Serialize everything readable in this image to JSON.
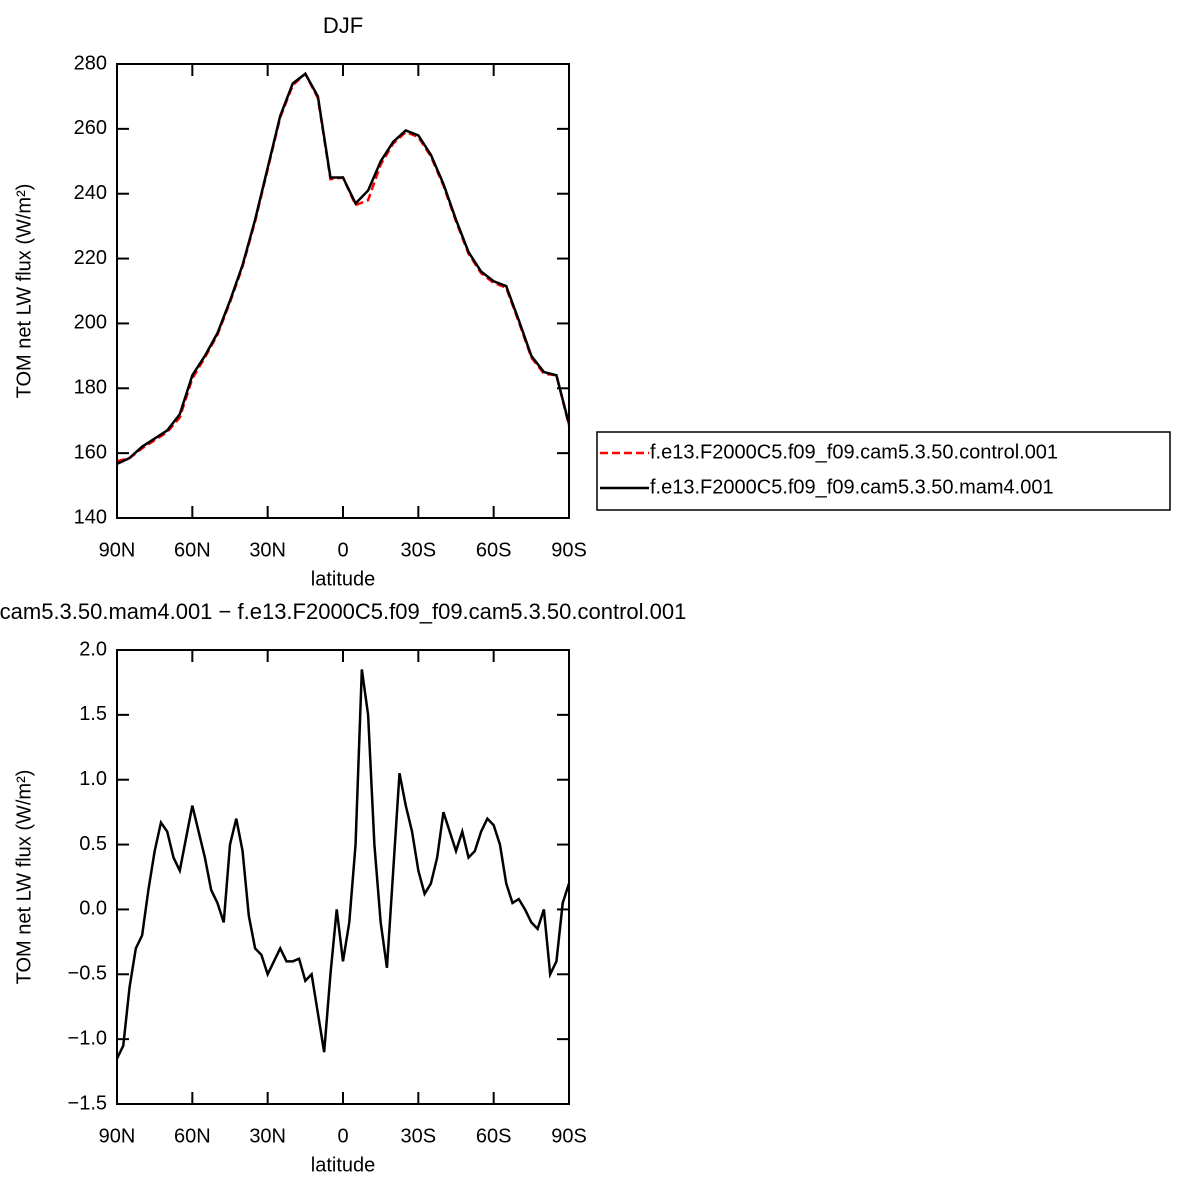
{
  "chart_data": [
    {
      "type": "line",
      "title": "DJF",
      "xlabel": "latitude",
      "ylabel": "TOM net LW flux (W/m²)",
      "x": [
        90,
        85,
        80,
        75,
        70,
        65,
        60,
        55,
        50,
        45,
        40,
        35,
        30,
        25,
        20,
        15,
        10,
        5,
        0,
        -5,
        -10,
        -15,
        -20,
        -25,
        -30,
        -35,
        -40,
        -45,
        -50,
        -55,
        -60,
        -65,
        -70,
        -75,
        -80,
        -85,
        -90
      ],
      "series": [
        {
          "name": "f.e13.F2000C5.f09_f09.cam5.3.50.control.001",
          "color": "#ff0000",
          "line_style": "dashed",
          "values": [
            157.5,
            158.5,
            161.5,
            164,
            166.5,
            171,
            183,
            189.5,
            196.5,
            206.5,
            217.5,
            231.5,
            247.5,
            263.5,
            273.5,
            277,
            269.5,
            244.5,
            245,
            236.5,
            238,
            249,
            255.5,
            259,
            257.5,
            251.5,
            242.5,
            231.5,
            221.5,
            215.5,
            212.5,
            211,
            200.5,
            189.5,
            184.5,
            184,
            168.5
          ]
        },
        {
          "name": "f.e13.F2000C5.f09_f09.cam5.3.50.mam4.001",
          "color": "#000000",
          "line_style": "solid",
          "values": [
            156.7,
            158.5,
            162,
            164.5,
            167,
            172,
            184,
            190,
            197,
            207,
            218,
            232,
            248,
            264,
            274,
            277,
            270,
            245,
            245,
            237,
            241,
            250,
            256,
            259.5,
            258,
            252,
            243,
            232,
            222,
            216,
            213,
            211.5,
            201,
            190,
            185,
            184,
            169
          ]
        }
      ],
      "xlim": [
        90,
        -90
      ],
      "xticks": [
        {
          "value": 90,
          "label": "90N"
        },
        {
          "value": 60,
          "label": "60N"
        },
        {
          "value": 30,
          "label": "30N"
        },
        0,
        {
          "value": -30,
          "label": "30S"
        },
        {
          "value": -60,
          "label": "60S"
        },
        {
          "value": -90,
          "label": "90S"
        }
      ],
      "ylim": [
        140,
        280
      ],
      "yticks": [
        140,
        160,
        180,
        200,
        220,
        240,
        260,
        280
      ],
      "legend": "right"
    },
    {
      "type": "line",
      "title": "cam5.3.50.mam4.001 − f.e13.F2000C5.f09_f09.cam5.3.50.control.001",
      "xlabel": "latitude",
      "ylabel": "TOM net LW flux (W/m²)",
      "x": [
        90,
        87.5,
        85,
        82.5,
        80,
        77.5,
        75,
        72.5,
        70,
        67.5,
        65,
        62.5,
        60,
        57.5,
        55,
        52.5,
        50,
        47.5,
        45,
        42.5,
        40,
        37.5,
        35,
        32.5,
        30,
        27.5,
        25,
        22.5,
        20,
        17.5,
        15,
        12.5,
        10,
        7.5,
        5,
        2.5,
        0,
        -2.5,
        -5,
        -7.5,
        -10,
        -12.5,
        -15,
        -17.5,
        -20,
        -22.5,
        -25,
        -27.5,
        -30,
        -32.5,
        -35,
        -37.5,
        -40,
        -42.5,
        -45,
        -47.5,
        -50,
        -52.5,
        -55,
        -57.5,
        -60,
        -62.5,
        -65,
        -67.5,
        -70,
        -72.5,
        -75,
        -77.5,
        -80,
        -82.5,
        -85,
        -87.5,
        -90
      ],
      "series": [
        {
          "color": "#000000",
          "line_style": "solid",
          "values": [
            -1.15,
            -1.05,
            -0.6,
            -0.3,
            -0.2,
            0.15,
            0.45,
            0.67,
            0.6,
            0.4,
            0.3,
            0.55,
            0.8,
            0.6,
            0.4,
            0.15,
            0.05,
            -0.1,
            0.5,
            0.7,
            0.45,
            -0.05,
            -0.3,
            -0.35,
            -0.5,
            -0.4,
            -0.3,
            -0.4,
            -0.4,
            -0.38,
            -0.55,
            -0.5,
            -0.8,
            -1.1,
            -0.5,
            0.0,
            -0.4,
            -0.1,
            0.5,
            1.85,
            1.5,
            0.5,
            -0.1,
            -0.45,
            0.3,
            1.05,
            0.8,
            0.6,
            0.3,
            0.12,
            0.2,
            0.4,
            0.75,
            0.6,
            0.45,
            0.6,
            0.4,
            0.45,
            0.6,
            0.7,
            0.65,
            0.5,
            0.2,
            0.05,
            0.08,
            0.0,
            -0.1,
            -0.15,
            0.0,
            -0.5,
            -0.4,
            0.05,
            0.2
          ]
        }
      ],
      "xlim": [
        90,
        -90
      ],
      "xticks": [
        {
          "value": 90,
          "label": "90N"
        },
        {
          "value": 60,
          "label": "60N"
        },
        {
          "value": 30,
          "label": "30N"
        },
        0,
        {
          "value": -30,
          "label": "30S"
        },
        {
          "value": -60,
          "label": "60S"
        },
        {
          "value": -90,
          "label": "90S"
        }
      ],
      "ylim": [
        -1.5,
        2.0
      ],
      "yticks": [
        {
          "value": -1.5,
          "label": "−1.5"
        },
        {
          "value": -1,
          "label": "−1.0"
        },
        {
          "value": -0.5,
          "label": "−0.5"
        },
        {
          "value": 0,
          "label": "0.0"
        },
        0.5,
        {
          "value": 1,
          "label": "1.0"
        },
        1.5,
        {
          "value": 2,
          "label": "2.0"
        }
      ]
    }
  ]
}
